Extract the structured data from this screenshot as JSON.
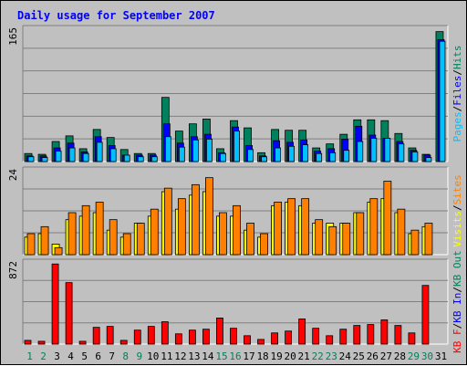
{
  "chart_data": {
    "type": "bar",
    "title": "Daily usage for September 2007",
    "categories": [
      "1",
      "2",
      "3",
      "4",
      "5",
      "6",
      "7",
      "8",
      "9",
      "10",
      "11",
      "12",
      "13",
      "14",
      "15",
      "16",
      "17",
      "18",
      "19",
      "20",
      "21",
      "22",
      "23",
      "24",
      "25",
      "26",
      "27",
      "28",
      "29",
      "30",
      "31"
    ],
    "weekend_days": [
      "1",
      "2",
      "8",
      "9",
      "15",
      "16",
      "22",
      "23",
      "29",
      "30"
    ],
    "panels": [
      {
        "id": "hits-panel",
        "ylabel": "165",
        "ylim": [
          0,
          165
        ],
        "axis_legend": [
          {
            "text": "Pages",
            "color": "#00c0ff"
          },
          {
            "text": "/",
            "color": "#000000"
          },
          {
            "text": "Files",
            "color": "#0000ff"
          },
          {
            "text": "/",
            "color": "#000000"
          },
          {
            "text": "Hits",
            "color": "#00805c"
          }
        ],
        "series": [
          {
            "name": "Hits",
            "color": "#00805c",
            "values": [
              10,
              9,
              25,
              32,
              16,
              40,
              30,
              15,
              10,
              10,
              80,
              38,
              47,
              53,
              16,
              51,
              42,
              11,
              40,
              39,
              39,
              17,
              22,
              34,
              52,
              52,
              51,
              35,
              17,
              9,
              162
            ]
          },
          {
            "name": "Files",
            "color": "#0000ff",
            "values": [
              7,
              7,
              17,
              23,
              12,
              31,
              20,
              8,
              8,
              8,
              47,
              23,
              31,
              34,
              11,
              43,
              20,
              7,
              26,
              24,
              27,
              13,
              16,
              28,
              44,
              33,
              29,
              25,
              14,
              8,
              152
            ]
          },
          {
            "name": "Pages",
            "color": "#00c0ff",
            "values": [
              6,
              5,
              13,
              17,
              10,
              24,
              16,
              8,
              6,
              6,
              31,
              18,
              27,
              28,
              10,
              38,
              15,
              6,
              17,
              19,
              21,
              10,
              11,
              14,
              25,
              29,
              29,
              22,
              12,
              5,
              150
            ]
          }
        ]
      },
      {
        "id": "kbytes-panel",
        "ylabel": "24",
        "ylim": [
          0,
          24
        ],
        "axis_legend": [
          {
            "text": "Visits",
            "color": "#ffff00"
          },
          {
            "text": "/",
            "color": "#000000"
          },
          {
            "text": "Sites",
            "color": "#ff8000"
          }
        ],
        "series": [
          {
            "name": "Visits",
            "color": "#ffff00",
            "values": [
              5,
              6,
              3,
              10,
              11,
              12,
              7,
              5,
              9,
              11,
              18,
              13,
              17,
              18,
              11,
              11,
              7,
              5,
              14,
              15,
              14,
              9,
              9,
              9,
              12,
              15,
              16,
              12,
              6,
              8,
              0
            ]
          },
          {
            "name": "Sites",
            "color": "#ff8000",
            "values": [
              6,
              8,
              2,
              12,
              14,
              15,
              10,
              6,
              9,
              13,
              19,
              16,
              20,
              22,
              12,
              14,
              9,
              6,
              15,
              16,
              16,
              10,
              8,
              9,
              12,
              16,
              21,
              13,
              7,
              9,
              0
            ]
          }
        ]
      },
      {
        "id": "kb-panel",
        "ylabel": "872",
        "ylim": [
          0,
          872
        ],
        "axis_legend": [
          {
            "text": "KB F",
            "color": "#ff0000"
          },
          {
            "text": "/",
            "color": "#000000"
          },
          {
            "text": "KB In",
            "color": "#0000ff"
          },
          {
            "text": "/",
            "color": "#000000"
          },
          {
            "text": "KB Out",
            "color": "#00805c"
          }
        ],
        "series": [
          {
            "name": "KB F",
            "color": "#ff0000",
            "values": [
              40,
              30,
              860,
              660,
              30,
              180,
              190,
              40,
              150,
              190,
              240,
              110,
              150,
              160,
              280,
              170,
              90,
              50,
              120,
              140,
              270,
              170,
              90,
              160,
              200,
              210,
              260,
              200,
              120,
              630,
              0
            ]
          }
        ]
      }
    ],
    "colors": {
      "title": "#0000ff",
      "plot_bg": "#c0c0c0",
      "gridline": "#808080",
      "weekday_label": "#000000",
      "weekend_label": "#00805c"
    }
  }
}
